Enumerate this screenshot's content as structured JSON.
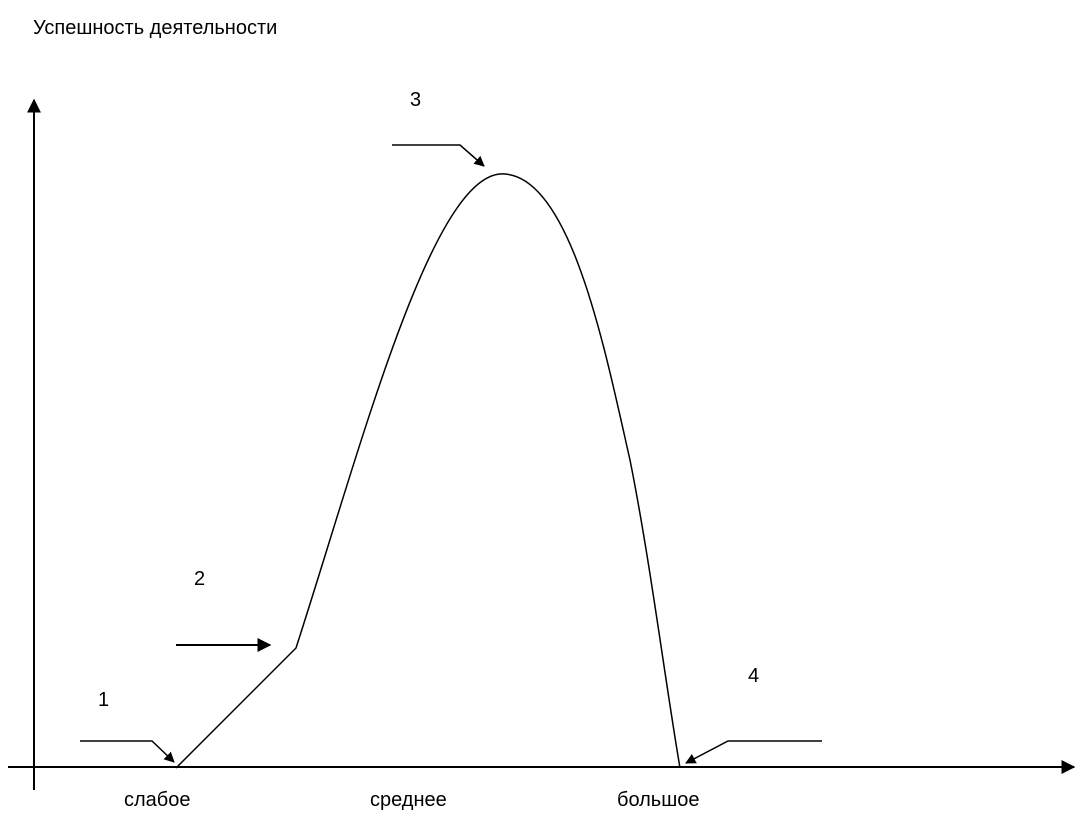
{
  "diagram": {
    "y_axis_title": "Успешность деятельности",
    "points": [
      "1",
      "2",
      "3",
      "4"
    ],
    "x_axis_labels": [
      "слабое",
      "среднее",
      "большое"
    ]
  }
}
